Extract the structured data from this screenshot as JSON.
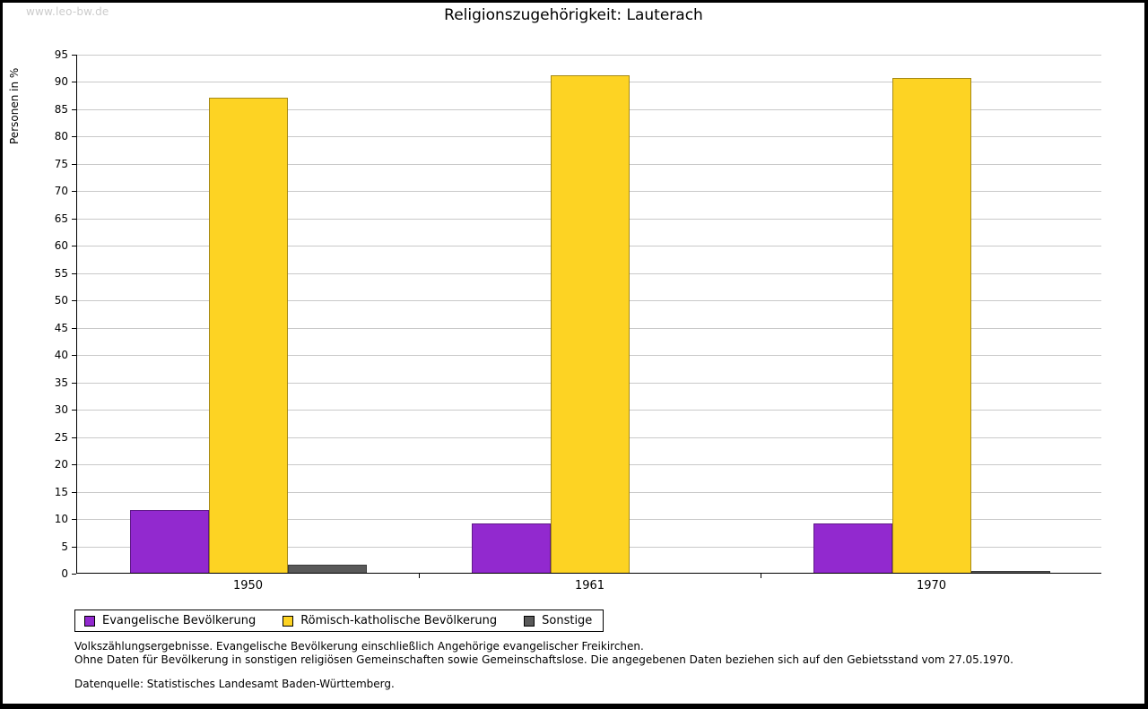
{
  "watermark": "www.leo-bw.de",
  "title": "Religionszugehörigkeit: Lauterach",
  "chart_data": {
    "type": "bar",
    "title": "Religionszugehörigkeit: Lauterach",
    "ylabel": "Personen in %",
    "xlabel": "",
    "categories": [
      "1950",
      "1961",
      "1970"
    ],
    "series": [
      {
        "name": "Evangelische Bevölkerung",
        "color": "#9229cf",
        "values": [
          11.5,
          9,
          9
        ]
      },
      {
        "name": "Römisch-katholische Bevölkerung",
        "color": "#fdd323",
        "values": [
          87,
          91,
          90.5
        ]
      },
      {
        "name": "Sonstige",
        "color": "#595959",
        "values": [
          1.5,
          0,
          0.3
        ]
      }
    ],
    "ylim": [
      0,
      95
    ],
    "ytick_step": 5,
    "grid": true,
    "legend_position": "bottom-left"
  },
  "footnotes": [
    "Volkszählungsergebnisse. Evangelische Bevölkerung einschließlich Angehörige evangelischer Freikirchen.",
    "Ohne Daten für Bevölkerung in sonstigen religiösen Gemeinschaften sowie Gemeinschaftslose. Die angegebenen Daten beziehen sich auf den Gebietsstand vom 27.05.1970."
  ],
  "source": "Datenquelle: Statistisches Landesamt Baden-Württemberg."
}
